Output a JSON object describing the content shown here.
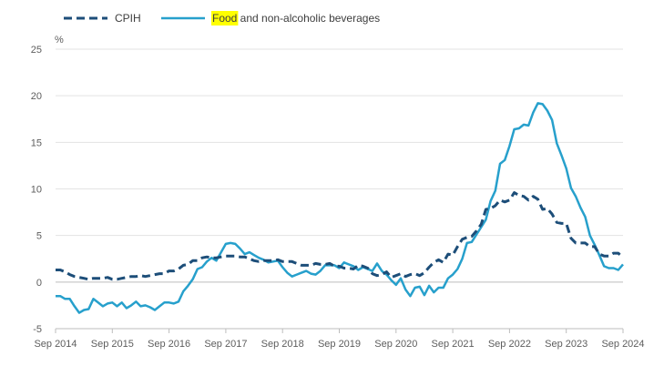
{
  "chart_data": {
    "type": "line",
    "y_unit": "%",
    "ylim": [
      -5,
      25
    ],
    "y_ticks": [
      -5,
      0,
      5,
      10,
      15,
      20,
      25
    ],
    "x_range": [
      "2014-09",
      "2024-09"
    ],
    "x_ticks": [
      "Sep 2014",
      "Sep 2015",
      "Sep 2016",
      "Sep 2017",
      "Sep 2018",
      "Sep 2019",
      "Sep 2020",
      "Sep 2021",
      "Sep 2022",
      "Sep 2023",
      "Sep 2024"
    ],
    "grid": "horizontal",
    "legend_position": "top-left",
    "series": [
      {
        "name": "CPIH",
        "color": "#1d4e79",
        "style": "dashed",
        "points": [
          [
            "2014-09",
            1.3
          ],
          [
            "2014-10",
            1.3
          ],
          [
            "2014-11",
            1.1
          ],
          [
            "2014-12",
            0.8
          ],
          [
            "2015-01",
            0.6
          ],
          [
            "2015-02",
            0.5
          ],
          [
            "2015-03",
            0.4
          ],
          [
            "2015-04",
            0.3
          ],
          [
            "2015-05",
            0.4
          ],
          [
            "2015-06",
            0.4
          ],
          [
            "2015-07",
            0.4
          ],
          [
            "2015-08",
            0.5
          ],
          [
            "2015-09",
            0.3
          ],
          [
            "2015-10",
            0.3
          ],
          [
            "2015-11",
            0.4
          ],
          [
            "2015-12",
            0.5
          ],
          [
            "2016-01",
            0.6
          ],
          [
            "2016-02",
            0.6
          ],
          [
            "2016-03",
            0.7
          ],
          [
            "2016-04",
            0.6
          ],
          [
            "2016-05",
            0.7
          ],
          [
            "2016-06",
            0.8
          ],
          [
            "2016-07",
            0.9
          ],
          [
            "2016-08",
            0.9
          ],
          [
            "2016-09",
            1.2
          ],
          [
            "2016-10",
            1.2
          ],
          [
            "2016-11",
            1.4
          ],
          [
            "2016-12",
            1.8
          ],
          [
            "2017-01",
            1.9
          ],
          [
            "2017-02",
            2.3
          ],
          [
            "2017-03",
            2.3
          ],
          [
            "2017-04",
            2.6
          ],
          [
            "2017-05",
            2.7
          ],
          [
            "2017-06",
            2.6
          ],
          [
            "2017-07",
            2.6
          ],
          [
            "2017-08",
            2.7
          ],
          [
            "2017-09",
            2.8
          ],
          [
            "2017-10",
            2.8
          ],
          [
            "2017-11",
            2.8
          ],
          [
            "2017-12",
            2.7
          ],
          [
            "2018-01",
            2.7
          ],
          [
            "2018-02",
            2.5
          ],
          [
            "2018-03",
            2.3
          ],
          [
            "2018-04",
            2.2
          ],
          [
            "2018-05",
            2.3
          ],
          [
            "2018-06",
            2.3
          ],
          [
            "2018-07",
            2.3
          ],
          [
            "2018-08",
            2.4
          ],
          [
            "2018-09",
            2.2
          ],
          [
            "2018-10",
            2.2
          ],
          [
            "2018-11",
            2.2
          ],
          [
            "2018-12",
            2.0
          ],
          [
            "2019-01",
            1.8
          ],
          [
            "2019-02",
            1.8
          ],
          [
            "2019-03",
            1.8
          ],
          [
            "2019-04",
            2.0
          ],
          [
            "2019-05",
            1.9
          ],
          [
            "2019-06",
            1.9
          ],
          [
            "2019-07",
            2.0
          ],
          [
            "2019-08",
            1.7
          ],
          [
            "2019-09",
            1.7
          ],
          [
            "2019-10",
            1.5
          ],
          [
            "2019-11",
            1.5
          ],
          [
            "2019-12",
            1.4
          ],
          [
            "2020-01",
            1.8
          ],
          [
            "2020-02",
            1.7
          ],
          [
            "2020-03",
            1.5
          ],
          [
            "2020-04",
            0.9
          ],
          [
            "2020-05",
            0.7
          ],
          [
            "2020-06",
            0.8
          ],
          [
            "2020-07",
            1.1
          ],
          [
            "2020-08",
            0.5
          ],
          [
            "2020-09",
            0.7
          ],
          [
            "2020-10",
            0.9
          ],
          [
            "2020-11",
            0.6
          ],
          [
            "2020-12",
            0.8
          ],
          [
            "2021-01",
            0.9
          ],
          [
            "2021-02",
            0.7
          ],
          [
            "2021-03",
            1.0
          ],
          [
            "2021-04",
            1.6
          ],
          [
            "2021-05",
            2.1
          ],
          [
            "2021-06",
            2.4
          ],
          [
            "2021-07",
            2.1
          ],
          [
            "2021-08",
            3.0
          ],
          [
            "2021-09",
            2.9
          ],
          [
            "2021-10",
            3.8
          ],
          [
            "2021-11",
            4.6
          ],
          [
            "2021-12",
            4.8
          ],
          [
            "2022-01",
            4.9
          ],
          [
            "2022-02",
            5.5
          ],
          [
            "2022-03",
            6.2
          ],
          [
            "2022-04",
            7.8
          ],
          [
            "2022-05",
            7.9
          ],
          [
            "2022-06",
            8.2
          ],
          [
            "2022-07",
            8.8
          ],
          [
            "2022-08",
            8.6
          ],
          [
            "2022-09",
            8.8
          ],
          [
            "2022-10",
            9.6
          ],
          [
            "2022-11",
            9.3
          ],
          [
            "2022-12",
            9.2
          ],
          [
            "2023-01",
            8.8
          ],
          [
            "2023-02",
            9.2
          ],
          [
            "2023-03",
            8.9
          ],
          [
            "2023-04",
            7.8
          ],
          [
            "2023-05",
            7.9
          ],
          [
            "2023-06",
            7.3
          ],
          [
            "2023-07",
            6.4
          ],
          [
            "2023-08",
            6.3
          ],
          [
            "2023-09",
            6.3
          ],
          [
            "2023-10",
            4.7
          ],
          [
            "2023-11",
            4.2
          ],
          [
            "2023-12",
            4.2
          ],
          [
            "2024-01",
            4.2
          ],
          [
            "2024-02",
            3.8
          ],
          [
            "2024-03",
            3.8
          ],
          [
            "2024-04",
            3.0
          ],
          [
            "2024-05",
            2.8
          ],
          [
            "2024-06",
            2.8
          ],
          [
            "2024-07",
            3.1
          ],
          [
            "2024-08",
            3.1
          ],
          [
            "2024-09",
            2.6
          ]
        ]
      },
      {
        "name": "Food and non-alcoholic beverages",
        "color": "#27a0cc",
        "style": "solid",
        "points": [
          [
            "2014-09",
            -1.5
          ],
          [
            "2014-10",
            -1.5
          ],
          [
            "2014-11",
            -1.8
          ],
          [
            "2014-12",
            -1.8
          ],
          [
            "2015-01",
            -2.6
          ],
          [
            "2015-02",
            -3.3
          ],
          [
            "2015-03",
            -3.0
          ],
          [
            "2015-04",
            -2.9
          ],
          [
            "2015-05",
            -1.8
          ],
          [
            "2015-06",
            -2.2
          ],
          [
            "2015-07",
            -2.6
          ],
          [
            "2015-08",
            -2.3
          ],
          [
            "2015-09",
            -2.2
          ],
          [
            "2015-10",
            -2.6
          ],
          [
            "2015-11",
            -2.2
          ],
          [
            "2015-12",
            -2.8
          ],
          [
            "2016-01",
            -2.5
          ],
          [
            "2016-02",
            -2.1
          ],
          [
            "2016-03",
            -2.6
          ],
          [
            "2016-04",
            -2.5
          ],
          [
            "2016-05",
            -2.7
          ],
          [
            "2016-06",
            -3.0
          ],
          [
            "2016-07",
            -2.6
          ],
          [
            "2016-08",
            -2.2
          ],
          [
            "2016-09",
            -2.2
          ],
          [
            "2016-10",
            -2.3
          ],
          [
            "2016-11",
            -2.1
          ],
          [
            "2016-12",
            -1.0
          ],
          [
            "2017-01",
            -0.4
          ],
          [
            "2017-02",
            0.3
          ],
          [
            "2017-03",
            1.4
          ],
          [
            "2017-04",
            1.6
          ],
          [
            "2017-05",
            2.2
          ],
          [
            "2017-06",
            2.6
          ],
          [
            "2017-07",
            2.3
          ],
          [
            "2017-08",
            3.2
          ],
          [
            "2017-09",
            4.1
          ],
          [
            "2017-10",
            4.2
          ],
          [
            "2017-11",
            4.1
          ],
          [
            "2017-12",
            3.6
          ],
          [
            "2018-01",
            3.0
          ],
          [
            "2018-02",
            3.2
          ],
          [
            "2018-03",
            2.9
          ],
          [
            "2018-04",
            2.6
          ],
          [
            "2018-05",
            2.4
          ],
          [
            "2018-06",
            2.1
          ],
          [
            "2018-07",
            2.2
          ],
          [
            "2018-08",
            2.3
          ],
          [
            "2018-09",
            1.6
          ],
          [
            "2018-10",
            1.0
          ],
          [
            "2018-11",
            0.6
          ],
          [
            "2018-12",
            0.8
          ],
          [
            "2019-01",
            1.0
          ],
          [
            "2019-02",
            1.2
          ],
          [
            "2019-03",
            0.9
          ],
          [
            "2019-04",
            0.8
          ],
          [
            "2019-05",
            1.2
          ],
          [
            "2019-06",
            1.8
          ],
          [
            "2019-07",
            1.8
          ],
          [
            "2019-08",
            1.8
          ],
          [
            "2019-09",
            1.5
          ],
          [
            "2019-10",
            2.1
          ],
          [
            "2019-11",
            1.9
          ],
          [
            "2019-12",
            1.7
          ],
          [
            "2020-01",
            1.3
          ],
          [
            "2020-02",
            1.6
          ],
          [
            "2020-03",
            1.4
          ],
          [
            "2020-04",
            1.2
          ],
          [
            "2020-05",
            2.0
          ],
          [
            "2020-06",
            1.2
          ],
          [
            "2020-07",
            0.8
          ],
          [
            "2020-08",
            0.2
          ],
          [
            "2020-09",
            -0.3
          ],
          [
            "2020-10",
            0.4
          ],
          [
            "2020-11",
            -0.8
          ],
          [
            "2020-12",
            -1.5
          ],
          [
            "2021-01",
            -0.6
          ],
          [
            "2021-02",
            -0.5
          ],
          [
            "2021-03",
            -1.4
          ],
          [
            "2021-04",
            -0.4
          ],
          [
            "2021-05",
            -1.1
          ],
          [
            "2021-06",
            -0.6
          ],
          [
            "2021-07",
            -0.6
          ],
          [
            "2021-08",
            0.4
          ],
          [
            "2021-09",
            0.8
          ],
          [
            "2021-10",
            1.4
          ],
          [
            "2021-11",
            2.5
          ],
          [
            "2021-12",
            4.2
          ],
          [
            "2022-01",
            4.3
          ],
          [
            "2022-02",
            5.1
          ],
          [
            "2022-03",
            5.9
          ],
          [
            "2022-04",
            6.7
          ],
          [
            "2022-05",
            8.7
          ],
          [
            "2022-06",
            9.8
          ],
          [
            "2022-07",
            12.7
          ],
          [
            "2022-08",
            13.1
          ],
          [
            "2022-09",
            14.6
          ],
          [
            "2022-10",
            16.4
          ],
          [
            "2022-11",
            16.5
          ],
          [
            "2022-12",
            16.9
          ],
          [
            "2023-01",
            16.8
          ],
          [
            "2023-02",
            18.2
          ],
          [
            "2023-03",
            19.2
          ],
          [
            "2023-04",
            19.1
          ],
          [
            "2023-05",
            18.4
          ],
          [
            "2023-06",
            17.4
          ],
          [
            "2023-07",
            14.9
          ],
          [
            "2023-08",
            13.6
          ],
          [
            "2023-09",
            12.2
          ],
          [
            "2023-10",
            10.1
          ],
          [
            "2023-11",
            9.2
          ],
          [
            "2023-12",
            8.0
          ],
          [
            "2024-01",
            7.0
          ],
          [
            "2024-02",
            5.0
          ],
          [
            "2024-03",
            4.0
          ],
          [
            "2024-04",
            2.9
          ],
          [
            "2024-05",
            1.7
          ],
          [
            "2024-06",
            1.5
          ],
          [
            "2024-07",
            1.5
          ],
          [
            "2024-08",
            1.3
          ],
          [
            "2024-09",
            1.9
          ]
        ]
      }
    ]
  }
}
